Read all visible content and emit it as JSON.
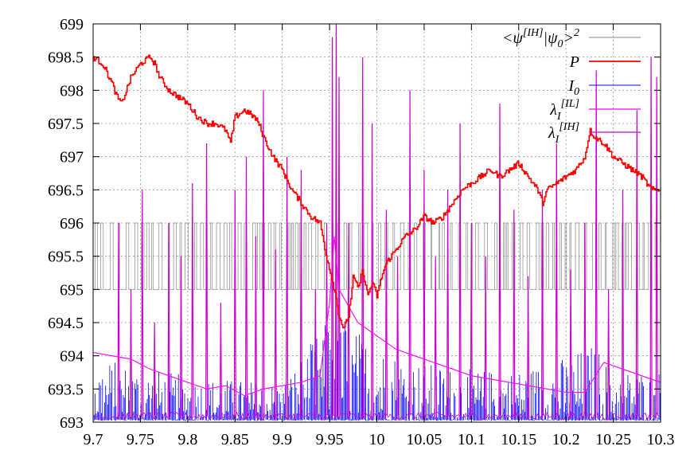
{
  "chart_data": {
    "type": "line",
    "title": "",
    "xlabel": "",
    "ylabel": "",
    "xlim": [
      9.7,
      10.3
    ],
    "ylim": [
      693,
      699
    ],
    "grid": true,
    "legend_placement": "top-right",
    "x_ticks": [
      "9.7",
      "9.75",
      "9.8",
      "9.85",
      "9.9",
      "9.95",
      "10",
      "10.05",
      "10.1",
      "10.15",
      "10.2",
      "10.25",
      "10.3"
    ],
    "y_ticks": [
      "693",
      "693.5",
      "694",
      "694.5",
      "695",
      "695.5",
      "696",
      "696.5",
      "697",
      "697.5",
      "698",
      "698.5",
      "699"
    ],
    "series": [
      {
        "name": "<ψ[IH]|ψ0>2",
        "legend": {
          "pre": "<ψ",
          "sup1": "[IH]",
          "mid": "|ψ",
          "sub": "0",
          "post": ">",
          "sup2": "2"
        },
        "color": "#888888",
        "style": "binary-switching",
        "levels": [
          695,
          696
        ]
      },
      {
        "name": "P",
        "legend": {
          "pre": "P"
        },
        "color": "#ff0000",
        "x": [
          9.7,
          9.71,
          9.72,
          9.725,
          9.73,
          9.74,
          9.75,
          9.76,
          9.765,
          9.77,
          9.78,
          9.79,
          9.8,
          9.81,
          9.82,
          9.83,
          9.84,
          9.845,
          9.85,
          9.86,
          9.87,
          9.875,
          9.88,
          9.89,
          9.9,
          9.91,
          9.92,
          9.93,
          9.94,
          9.945,
          9.95,
          9.955,
          9.96,
          9.965,
          9.97,
          9.975,
          9.98,
          9.985,
          9.99,
          9.995,
          10.0,
          10.005,
          10.01,
          10.02,
          10.03,
          10.04,
          10.05,
          10.06,
          10.07,
          10.08,
          10.09,
          10.1,
          10.11,
          10.12,
          10.13,
          10.14,
          10.15,
          10.16,
          10.17,
          10.175,
          10.18,
          10.19,
          10.2,
          10.21,
          10.22,
          10.225,
          10.23,
          10.24,
          10.25,
          10.26,
          10.27,
          10.28,
          10.29,
          10.3
        ],
        "values": [
          698.5,
          698.4,
          698.1,
          697.9,
          697.8,
          698.2,
          698.4,
          698.5,
          698.4,
          698.2,
          698.0,
          697.9,
          697.8,
          697.6,
          697.5,
          697.5,
          697.4,
          697.2,
          697.6,
          697.7,
          697.6,
          697.5,
          697.3,
          697.0,
          696.8,
          696.5,
          696.3,
          696.1,
          696.0,
          695.6,
          695.3,
          695.0,
          694.6,
          694.4,
          694.6,
          695.2,
          695.0,
          695.3,
          694.9,
          695.1,
          694.9,
          695.2,
          695.4,
          695.6,
          695.8,
          695.9,
          696.1,
          696.0,
          696.1,
          696.3,
          696.5,
          696.6,
          696.7,
          696.8,
          696.7,
          696.8,
          696.9,
          696.7,
          696.5,
          696.3,
          696.5,
          696.6,
          696.7,
          696.8,
          697.0,
          697.4,
          697.3,
          697.2,
          697.0,
          696.9,
          696.8,
          696.7,
          696.5,
          696.5
        ]
      },
      {
        "name": "I0",
        "legend": {
          "pre": "I",
          "sub": "0"
        },
        "color": "#0000ff",
        "style": "dense-spikes",
        "envelope_x": [
          9.7,
          9.8,
          9.9,
          9.95,
          9.955,
          9.97,
          10.0,
          10.05,
          10.1,
          10.15,
          10.2,
          10.23,
          10.25,
          10.3
        ],
        "envelope_values": [
          694.0,
          693.7,
          693.6,
          694.6,
          695.4,
          694.5,
          694.2,
          693.9,
          693.8,
          693.8,
          694.0,
          694.2,
          693.8,
          693.8
        ]
      },
      {
        "name": "λI[IL]",
        "legend": {
          "pre": "λ",
          "sub": "I",
          "sup1": "[IL]"
        },
        "color": "#ff00ff",
        "style": "smooth-decay",
        "x": [
          9.7,
          9.72,
          9.74,
          9.76,
          9.78,
          9.8,
          9.82,
          9.84,
          9.86,
          9.88,
          9.9,
          9.92,
          9.94,
          9.95,
          9.955,
          9.96,
          9.98,
          10.0,
          10.02,
          10.04,
          10.06,
          10.08,
          10.1,
          10.12,
          10.14,
          10.16,
          10.18,
          10.2,
          10.22,
          10.24,
          10.26,
          10.28,
          10.3
        ],
        "values": [
          694.05,
          694.0,
          693.95,
          693.8,
          693.7,
          693.6,
          693.5,
          693.55,
          693.4,
          693.5,
          693.55,
          693.6,
          693.7,
          694.8,
          695.8,
          695.0,
          694.5,
          694.3,
          694.1,
          694.0,
          693.9,
          693.8,
          693.7,
          693.65,
          693.6,
          693.55,
          693.5,
          693.45,
          693.45,
          693.9,
          693.8,
          693.7,
          693.6
        ]
      },
      {
        "name": "λI[IH]",
        "legend": {
          "pre": "λ",
          "sub": "I",
          "sup1": "[IH]"
        },
        "color": "#cc00cc",
        "style": "sparse-spikes",
        "spike_x": [
          9.727,
          9.74,
          9.752,
          9.765,
          9.78,
          9.793,
          9.805,
          9.82,
          9.835,
          9.85,
          9.862,
          9.872,
          9.88,
          9.893,
          9.905,
          9.92,
          9.935,
          9.947,
          9.953,
          9.957,
          9.96,
          9.97,
          9.985,
          9.995,
          10.01,
          10.022,
          10.035,
          10.05,
          10.062,
          10.075,
          10.088,
          10.1,
          10.115,
          10.13,
          10.145,
          10.16,
          10.175,
          10.19,
          10.205,
          10.22,
          10.232,
          10.245,
          10.26,
          10.275,
          10.29,
          10.296
        ],
        "spike_values": [
          696.0,
          695.0,
          696.5,
          694.5,
          696.0,
          695.5,
          696.6,
          697.2,
          694.8,
          696.5,
          697.0,
          695.8,
          698.0,
          695.6,
          697.0,
          696.8,
          695.0,
          696.0,
          698.8,
          699.0,
          698.2,
          696.0,
          698.5,
          697.5,
          696.2,
          695.5,
          698.0,
          696.8,
          695.5,
          696.5,
          697.5,
          696.0,
          695.5,
          697.8,
          696.2,
          695.2,
          696.5,
          697.2,
          695.3,
          696.0,
          698.3,
          695.0,
          696.5,
          697.7,
          698.5,
          698.2
        ]
      }
    ]
  }
}
